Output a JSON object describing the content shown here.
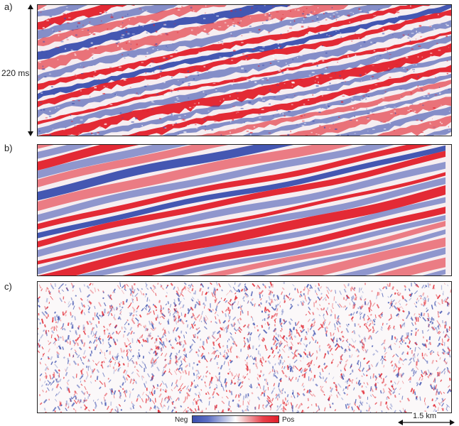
{
  "panels": [
    {
      "label": "a)"
    },
    {
      "label": "b)"
    },
    {
      "label": "c)"
    }
  ],
  "vertical_scale": {
    "label": "220 ms"
  },
  "horizontal_scale": {
    "label": "1.5 km"
  },
  "colorbar": {
    "neg_label": "Neg",
    "pos_label": "Pos"
  },
  "colors": {
    "negative": "#3a4eae",
    "positive": "#e11f2a",
    "zero": "#ffffff"
  }
}
